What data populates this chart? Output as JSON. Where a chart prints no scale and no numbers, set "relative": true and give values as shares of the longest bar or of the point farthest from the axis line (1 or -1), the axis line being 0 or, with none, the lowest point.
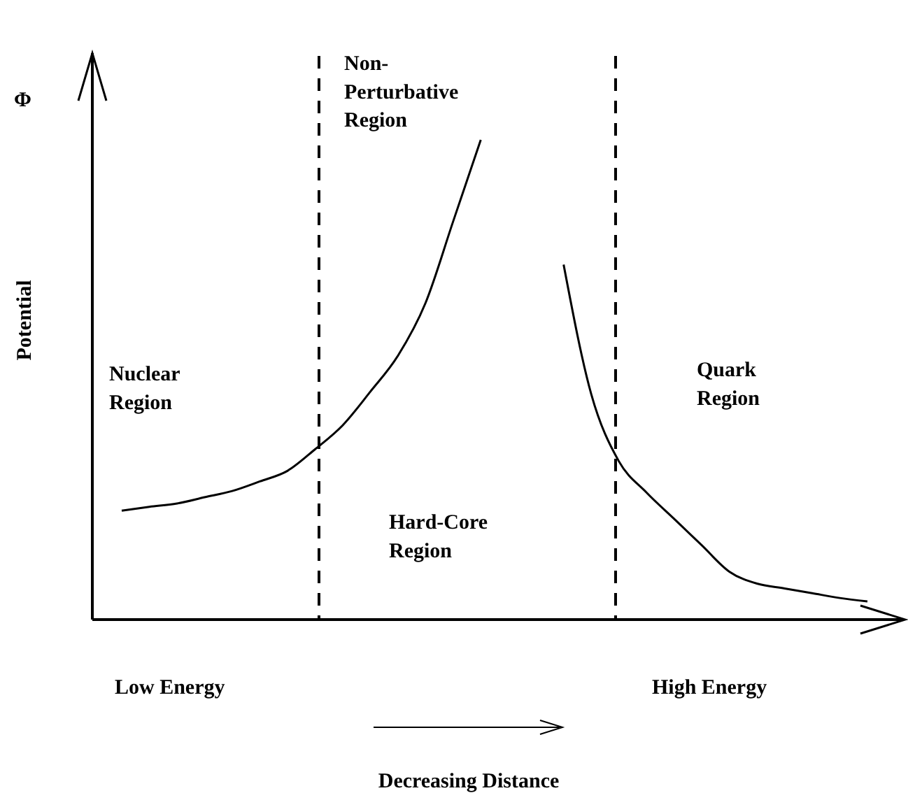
{
  "chart_data": {
    "type": "line",
    "relative": true,
    "ylabel": "Potential",
    "categories": [
      null,
      null,
      null,
      null,
      null,
      null,
      null,
      null,
      null,
      null,
      null,
      null,
      null,
      null,
      null,
      null,
      null,
      null,
      null,
      null,
      null,
      null,
      null,
      null,
      null,
      null,
      null,
      null
    ],
    "series": [
      {
        "color": "#000000",
        "values": [
          0.227,
          0.235,
          0.242,
          0.255,
          0.268,
          0.288,
          0.31,
          0.355,
          0.405,
          0.475,
          0.55,
          0.66,
          0.83,
          1,
          null,
          null,
          null,
          null,
          null,
          null,
          null,
          null,
          null,
          null,
          null,
          null,
          null,
          null
        ]
      },
      {
        "color": "#000000",
        "values": [
          null,
          null,
          null,
          null,
          null,
          null,
          null,
          null,
          null,
          null,
          null,
          null,
          null,
          null,
          null,
          null,
          0.74,
          0.47,
          0.33,
          0.265,
          0.21,
          0.155,
          0.1,
          0.075,
          0.065,
          0.055,
          0.045,
          0.038
        ]
      }
    ],
    "annotations": [
      "Φ",
      "Nuclear\nRegion",
      "Non-\nPerturbative\nRegion",
      "Hard-Core\nRegion",
      "Quark\nRegion",
      "Low Energy",
      "High Energy",
      "Decreasing Distance"
    ],
    "marker": "none",
    "line_style": "solid"
  }
}
